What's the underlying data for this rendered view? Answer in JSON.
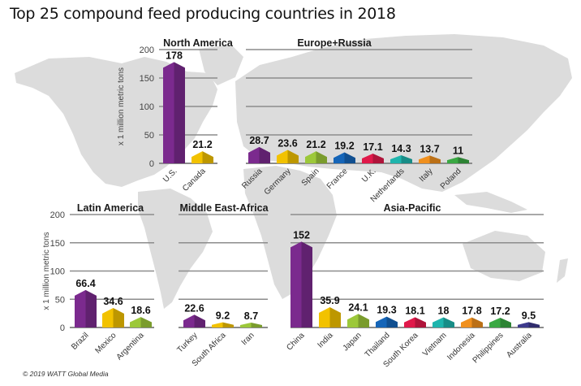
{
  "title": "Top 25 compound feed producing countries in 2018",
  "credit": "© 2019 WATT Global Media",
  "chart_data": [
    {
      "type": "bar",
      "title": "North America",
      "ylabel": "x 1 million metric tons",
      "ylim": [
        0,
        200
      ],
      "yticks": [
        0,
        50,
        100,
        150,
        200
      ],
      "categories": [
        "U.S.",
        "Canada"
      ],
      "values": [
        178,
        21.2
      ],
      "value_labels": [
        "178",
        "21.2"
      ],
      "colors": [
        "#7b2a8e",
        "#f2c200"
      ],
      "grid": true
    },
    {
      "type": "bar",
      "title": "Europe+Russia",
      "ylim": [
        0,
        200
      ],
      "categories": [
        "Russia",
        "Germany",
        "Spain",
        "France",
        "U.K.",
        "Netherlands",
        "Italy",
        "Poland"
      ],
      "values": [
        28.7,
        23.6,
        21.2,
        19.2,
        17.1,
        14.3,
        13.7,
        11
      ],
      "value_labels": [
        "28.7",
        "23.6",
        "21.2",
        "19.2",
        "17.1",
        "14.3",
        "13.7",
        "11"
      ],
      "colors": [
        "#7b2a8e",
        "#f2c200",
        "#9cc83a",
        "#1565b8",
        "#e0194a",
        "#1fb5ad",
        "#f0901e",
        "#3aa843"
      ],
      "grid": true
    },
    {
      "type": "bar",
      "title": "Latin America",
      "ylabel": "x 1 million metric tons",
      "ylim": [
        0,
        200
      ],
      "yticks": [
        0,
        50,
        100,
        150,
        200
      ],
      "categories": [
        "Brazil",
        "Mexico",
        "Argentina"
      ],
      "values": [
        66.4,
        34.6,
        18.6
      ],
      "value_labels": [
        "66.4",
        "34.6",
        "18.6"
      ],
      "colors": [
        "#7b2a8e",
        "#f2c200",
        "#9cc83a"
      ],
      "grid": true
    },
    {
      "type": "bar",
      "title": "Middle East-Africa",
      "ylim": [
        0,
        200
      ],
      "categories": [
        "Turkey",
        "South Africa",
        "Iran"
      ],
      "values": [
        22.6,
        9.2,
        8.7
      ],
      "value_labels": [
        "22.6",
        "9.2",
        "8.7"
      ],
      "colors": [
        "#7b2a8e",
        "#f2c200",
        "#9cc83a"
      ],
      "grid": true
    },
    {
      "type": "bar",
      "title": "Asia-Pacific",
      "ylim": [
        0,
        200
      ],
      "categories": [
        "China",
        "India",
        "Japan",
        "Thailand",
        "South Korea",
        "Vietnam",
        "Indonesia",
        "Philippines",
        "Australia"
      ],
      "values": [
        152,
        35.9,
        24.1,
        19.3,
        18.1,
        18,
        17.8,
        17.2,
        9.5
      ],
      "value_labels": [
        "152",
        "35.9",
        "24.1",
        "19.3",
        "18.1",
        "18",
        "17.8",
        "17.2",
        "9.5"
      ],
      "colors": [
        "#7b2a8e",
        "#f2c200",
        "#9cc83a",
        "#1565b8",
        "#e0194a",
        "#1fb5ad",
        "#f0901e",
        "#3aa843",
        "#3d3a8c"
      ],
      "grid": true
    }
  ]
}
